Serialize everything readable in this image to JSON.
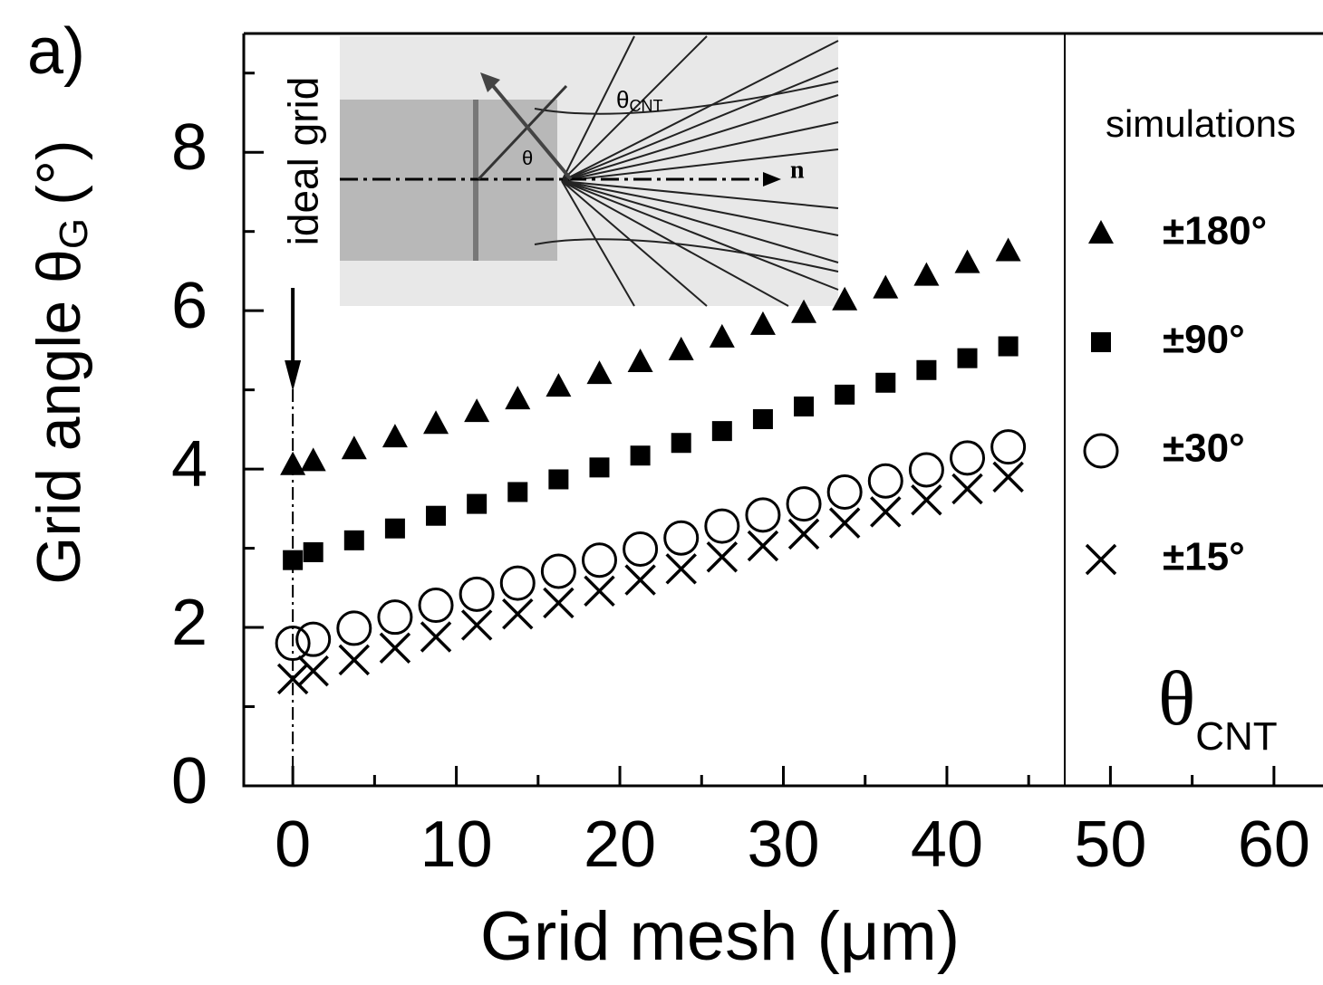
{
  "panel_label": "a)",
  "chart_data": {
    "type": "scatter",
    "x_label": "Grid mesh (μm)",
    "y_label": "Grid angle  θ",
    "y_label_sub": "G",
    "y_label_unit": "(°)",
    "xlim": [
      -3,
      63
    ],
    "ylim": [
      0,
      9.5
    ],
    "xticks": [
      0,
      10,
      20,
      30,
      40,
      50,
      60
    ],
    "xticks_minor": [
      5,
      15,
      25,
      35,
      45,
      55
    ],
    "yticks": [
      0,
      2,
      4,
      6,
      8
    ],
    "yticks_minor": [
      1,
      3,
      5,
      7,
      9
    ],
    "legend_title": "simulations",
    "legend_footer": "θ",
    "legend_footer_sub": "CNT",
    "annotation": "ideal grid",
    "inset_labels": {
      "theta_cnt": "θ",
      "theta_cnt_sub": "CNT",
      "theta": "θ",
      "normal": "n"
    },
    "x": [
      0,
      1.25,
      3.75,
      6.25,
      8.75,
      11.25,
      13.75,
      16.25,
      18.75,
      21.25,
      23.75,
      26.25,
      28.75,
      31.25,
      33.75,
      36.25,
      38.75,
      41.25,
      43.75
    ],
    "series": [
      {
        "name": "±180°",
        "marker": "triangle",
        "color": "#000000",
        "values": [
          4.05,
          4.1,
          4.25,
          4.4,
          4.57,
          4.72,
          4.88,
          5.04,
          5.2,
          5.35,
          5.5,
          5.66,
          5.82,
          5.97,
          6.13,
          6.28,
          6.44,
          6.6,
          6.75
        ]
      },
      {
        "name": "±90°",
        "marker": "square",
        "color": "#000000",
        "values": [
          2.85,
          2.95,
          3.1,
          3.25,
          3.41,
          3.56,
          3.71,
          3.87,
          4.02,
          4.17,
          4.33,
          4.48,
          4.63,
          4.79,
          4.94,
          5.09,
          5.25,
          5.4,
          5.55
        ]
      },
      {
        "name": "±30°",
        "marker": "circle",
        "color": "#000000",
        "values": [
          1.8,
          1.85,
          1.99,
          2.13,
          2.28,
          2.42,
          2.56,
          2.71,
          2.85,
          2.99,
          3.13,
          3.28,
          3.42,
          3.56,
          3.71,
          3.85,
          3.99,
          4.14,
          4.28
        ]
      },
      {
        "name": "±15°",
        "marker": "cross",
        "color": "#000000",
        "values": [
          1.35,
          1.45,
          1.59,
          1.74,
          1.88,
          2.03,
          2.17,
          2.31,
          2.46,
          2.6,
          2.74,
          2.89,
          3.03,
          3.18,
          3.32,
          3.46,
          3.61,
          3.75,
          3.9
        ]
      }
    ]
  }
}
